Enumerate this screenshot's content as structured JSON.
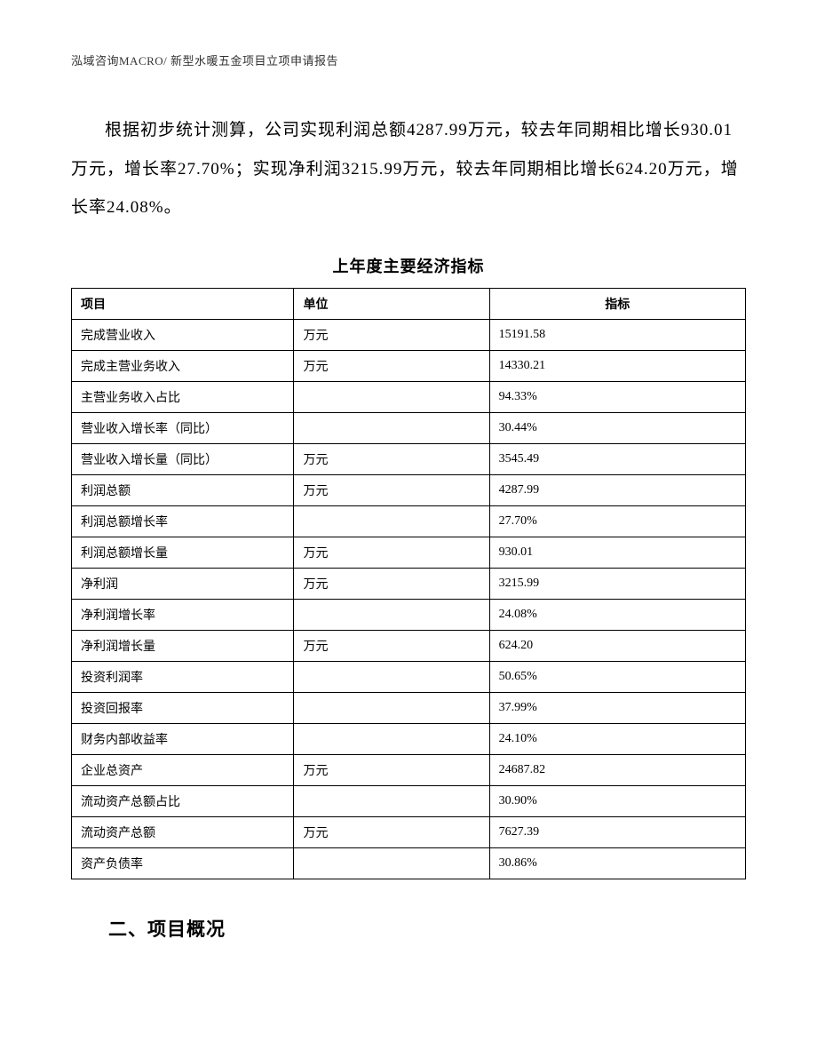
{
  "header": {
    "text": "泓域咨询MACRO/   新型水暖五金项目立项申请报告"
  },
  "paragraph": {
    "text": "根据初步统计测算，公司实现利润总额4287.99万元，较去年同期相比增长930.01万元，增长率27.70%；实现净利润3215.99万元，较去年同期相比增长624.20万元，增长率24.08%。"
  },
  "table": {
    "title": "上年度主要经济指标",
    "columns": [
      "项目",
      "单位",
      "指标"
    ],
    "rows": [
      [
        "完成营业收入",
        "万元",
        "15191.58"
      ],
      [
        "完成主营业务收入",
        "万元",
        "14330.21"
      ],
      [
        "主营业务收入占比",
        "",
        "94.33%"
      ],
      [
        "营业收入增长率（同比）",
        "",
        "30.44%"
      ],
      [
        "营业收入增长量（同比）",
        "万元",
        "3545.49"
      ],
      [
        "利润总额",
        "万元",
        "4287.99"
      ],
      [
        "利润总额增长率",
        "",
        "27.70%"
      ],
      [
        "利润总额增长量",
        "万元",
        "930.01"
      ],
      [
        "净利润",
        "万元",
        "3215.99"
      ],
      [
        "净利润增长率",
        "",
        "24.08%"
      ],
      [
        "净利润增长量",
        "万元",
        "624.20"
      ],
      [
        "投资利润率",
        "",
        "50.65%"
      ],
      [
        "投资回报率",
        "",
        "37.99%"
      ],
      [
        "财务内部收益率",
        "",
        "24.10%"
      ],
      [
        "企业总资产",
        "万元",
        "24687.82"
      ],
      [
        "流动资产总额占比",
        "",
        "30.90%"
      ],
      [
        "流动资产总额",
        "万元",
        "7627.39"
      ],
      [
        "资产负债率",
        "",
        "30.86%"
      ]
    ]
  },
  "section": {
    "heading": "二、项目概况"
  }
}
